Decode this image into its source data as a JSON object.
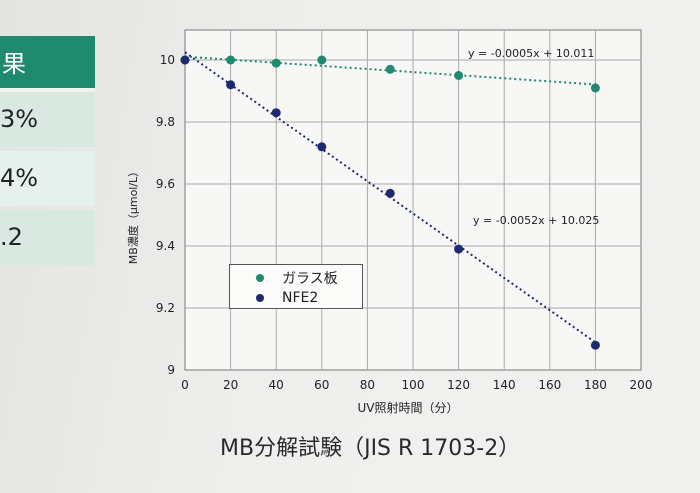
{
  "side_table": {
    "header": "果",
    "cells": [
      "3%",
      "4%",
      ".2"
    ]
  },
  "chart_data": {
    "type": "scatter",
    "title": "MB分解試験（JIS R 1703-2）",
    "xlabel": "UV照射時間（分）",
    "ylabel": "MB濃度（μmol/L）",
    "xlim": [
      0,
      200
    ],
    "ylim": [
      9,
      10.1
    ],
    "xticks": [
      0,
      20,
      40,
      60,
      80,
      100,
      120,
      140,
      160,
      180,
      200
    ],
    "yticks": [
      9,
      9.2,
      9.4,
      9.6,
      9.8,
      10
    ],
    "ytick_labels": [
      "9",
      "9.2",
      "9.4",
      "9.6",
      "9.8",
      "10"
    ],
    "grid": true,
    "legend_position": "lower-left",
    "series": [
      {
        "name": "ガラス板",
        "color": "#1f8a6e",
        "x": [
          0,
          20,
          40,
          60,
          90,
          120,
          180
        ],
        "y": [
          10.0,
          10.0,
          9.99,
          10.0,
          9.97,
          9.95,
          9.91
        ],
        "trendline": {
          "slope": -0.0005,
          "intercept": 10.011,
          "label": "y = -0.0005x + 10.011"
        }
      },
      {
        "name": "NFE2",
        "color": "#1e2a6e",
        "x": [
          0,
          20,
          40,
          60,
          90,
          120,
          180
        ],
        "y": [
          10.0,
          9.92,
          9.83,
          9.72,
          9.57,
          9.39,
          9.08
        ],
        "trendline": {
          "slope": -0.0052,
          "intercept": 10.025,
          "label": "y = -0.0052x + 10.025"
        }
      }
    ]
  }
}
